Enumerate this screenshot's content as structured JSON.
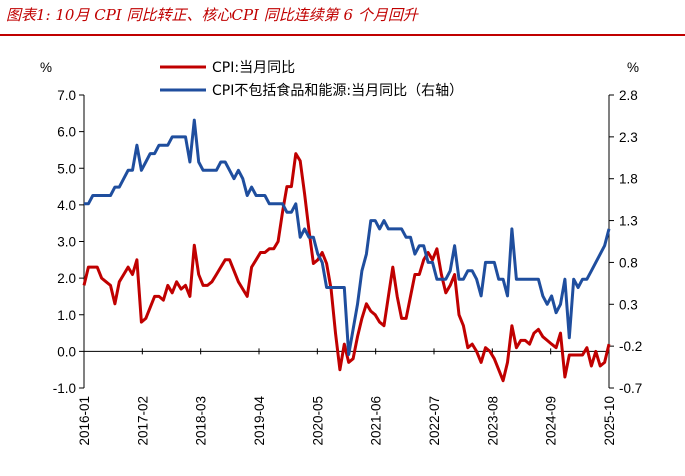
{
  "chart_data": {
    "type": "line",
    "title": "图表1:  10月 CPI 同比转正、核心CPI 同比连续第 6 个月回升",
    "ylabel_left": "%",
    "ylabel_right": "%",
    "ylim_left": [
      -1.0,
      7.0
    ],
    "ylim_right": [
      -0.7,
      2.8
    ],
    "left_ticks": [
      "7.0",
      "6.0",
      "5.0",
      "4.0",
      "3.0",
      "2.0",
      "1.0",
      "0.0",
      "-1.0"
    ],
    "right_ticks": [
      "2.8",
      "2.3",
      "1.8",
      "1.3",
      "0.8",
      "0.3",
      "-0.2",
      "-0.7"
    ],
    "x_ticks": [
      "2016-01",
      "2017-02",
      "2018-03",
      "2019-04",
      "2020-05",
      "2021-06",
      "2022-07",
      "2023-08",
      "2024-09",
      "2025-10"
    ],
    "x_range": [
      "2016-01",
      "2025-10"
    ],
    "colors": {
      "cpi": "#c00000",
      "core": "#1f4e9e",
      "title": "#c00000"
    },
    "series": [
      {
        "name": "CPI:当月同比",
        "axis": "left",
        "values": [
          1.8,
          2.3,
          2.3,
          2.3,
          2.0,
          1.9,
          1.8,
          1.3,
          1.9,
          2.1,
          2.3,
          2.1,
          2.5,
          0.8,
          0.9,
          1.2,
          1.5,
          1.5,
          1.4,
          1.8,
          1.6,
          1.9,
          1.7,
          1.8,
          1.5,
          2.9,
          2.1,
          1.8,
          1.8,
          1.9,
          2.1,
          2.3,
          2.5,
          2.5,
          2.2,
          1.9,
          1.7,
          1.5,
          2.3,
          2.5,
          2.7,
          2.7,
          2.8,
          2.8,
          3.0,
          3.8,
          4.5,
          4.5,
          5.4,
          5.2,
          4.3,
          3.3,
          2.4,
          2.5,
          2.7,
          2.4,
          1.7,
          0.5,
          -0.5,
          0.2,
          -0.3,
          -0.2,
          0.4,
          0.9,
          1.3,
          1.1,
          1.0,
          0.8,
          0.7,
          1.5,
          2.3,
          1.5,
          0.9,
          0.9,
          1.5,
          2.1,
          2.1,
          2.5,
          2.7,
          2.5,
          2.8,
          2.1,
          1.6,
          1.8,
          2.1,
          1.0,
          0.7,
          0.1,
          0.2,
          0.0,
          -0.3,
          0.1,
          0.0,
          -0.2,
          -0.5,
          -0.8,
          -0.3,
          0.7,
          0.1,
          0.3,
          0.3,
          0.2,
          0.5,
          0.6,
          0.4,
          0.3,
          0.2,
          0.1,
          0.5,
          -0.7,
          -0.1,
          -0.1,
          -0.1,
          -0.1,
          0.1,
          -0.4,
          0.0,
          -0.4,
          -0.3,
          0.2
        ],
        "color": "#c00000"
      },
      {
        "name": "CPI不包括食品和能源:当月同比（右轴）",
        "axis": "right",
        "values": [
          1.5,
          1.5,
          1.6,
          1.6,
          1.6,
          1.6,
          1.6,
          1.7,
          1.7,
          1.8,
          1.9,
          1.9,
          2.2,
          1.9,
          2.0,
          2.1,
          2.1,
          2.2,
          2.2,
          2.2,
          2.3,
          2.3,
          2.3,
          2.3,
          2.0,
          2.5,
          2.0,
          1.9,
          1.9,
          1.9,
          1.9,
          2.0,
          2.0,
          1.9,
          1.8,
          1.9,
          1.8,
          1.6,
          1.7,
          1.6,
          1.6,
          1.6,
          1.5,
          1.5,
          1.5,
          1.5,
          1.4,
          1.4,
          1.5,
          1.1,
          1.2,
          1.1,
          1.1,
          0.9,
          0.8,
          0.5,
          0.5,
          0.5,
          0.5,
          0.5,
          -0.3,
          0.0,
          0.3,
          0.7,
          0.9,
          1.3,
          1.3,
          1.2,
          1.3,
          1.2,
          1.2,
          1.2,
          1.2,
          1.1,
          1.1,
          0.9,
          1.0,
          1.0,
          0.8,
          0.8,
          0.6,
          0.6,
          0.6,
          0.7,
          1.0,
          0.6,
          0.6,
          0.7,
          0.7,
          0.6,
          0.4,
          0.8,
          0.8,
          0.8,
          0.6,
          0.6,
          0.4,
          1.2,
          0.6,
          0.6,
          0.6,
          0.6,
          0.6,
          0.6,
          0.4,
          0.3,
          0.4,
          0.2,
          0.3,
          0.6,
          -0.1,
          0.6,
          0.5,
          0.6,
          0.6,
          0.7,
          0.8,
          0.9,
          1.0,
          1.2
        ],
        "color": "#1f4e9e"
      }
    ],
    "legend_position": "top-center"
  }
}
